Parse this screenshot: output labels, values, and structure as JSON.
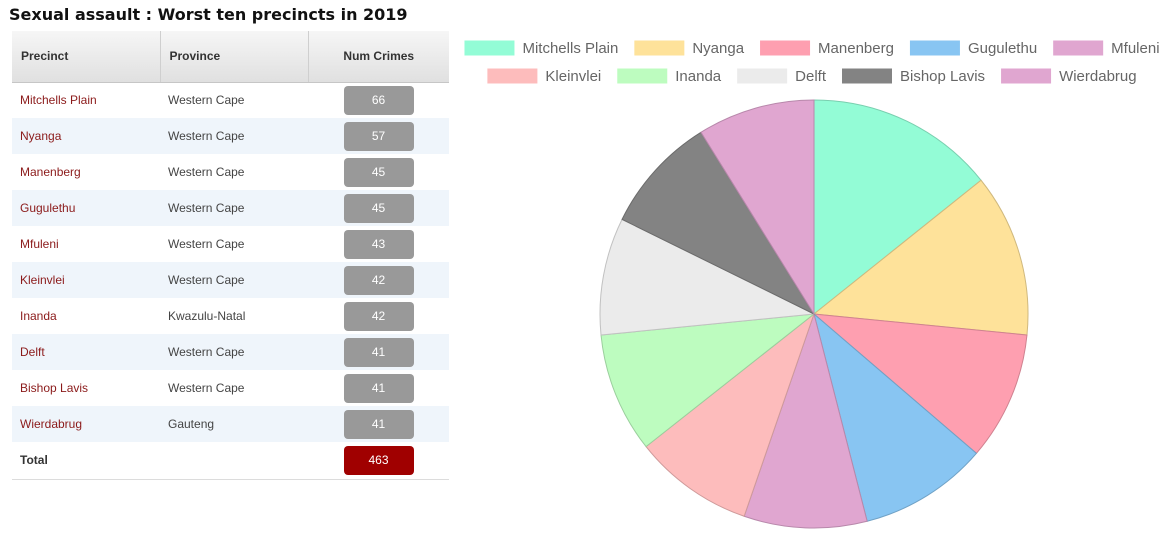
{
  "title": "Sexual assault : Worst ten precincts in 2019",
  "table": {
    "headers": {
      "precinct": "Precinct",
      "province": "Province",
      "num": "Num Crimes"
    },
    "rows": [
      {
        "precinct": "Mitchells Plain",
        "province": "Western Cape",
        "num": "66"
      },
      {
        "precinct": "Nyanga",
        "province": "Western Cape",
        "num": "57"
      },
      {
        "precinct": "Manenberg",
        "province": "Western Cape",
        "num": "45"
      },
      {
        "precinct": "Gugulethu",
        "province": "Western Cape",
        "num": "45"
      },
      {
        "precinct": "Mfuleni",
        "province": "Western Cape",
        "num": "43"
      },
      {
        "precinct": "Kleinvlei",
        "province": "Western Cape",
        "num": "42"
      },
      {
        "precinct": "Inanda",
        "province": "Kwazulu-Natal",
        "num": "42"
      },
      {
        "precinct": "Delft",
        "province": "Western Cape",
        "num": "41"
      },
      {
        "precinct": "Bishop Lavis",
        "province": "Western Cape",
        "num": "41"
      },
      {
        "precinct": "Wierdabrug",
        "province": "Gauteng",
        "num": "41"
      }
    ],
    "total": {
      "label": "Total",
      "value": "463"
    }
  },
  "chart_data": {
    "type": "pie",
    "categories": [
      "Mitchells Plain",
      "Nyanga",
      "Manenberg",
      "Gugulethu",
      "Mfuleni",
      "Kleinvlei",
      "Inanda",
      "Delft",
      "Bishop Lavis",
      "Wierdabrug"
    ],
    "values": [
      66,
      57,
      45,
      45,
      43,
      42,
      42,
      41,
      41,
      41
    ],
    "colors": [
      "#93fcd6",
      "#fee29a",
      "#fe9fb0",
      "#88c5f2",
      "#e0a6d0",
      "#fdbcbc",
      "#bdfcbf",
      "#ebebeb",
      "#838383",
      "#e0a6d0"
    ],
    "legend_position": "top"
  }
}
